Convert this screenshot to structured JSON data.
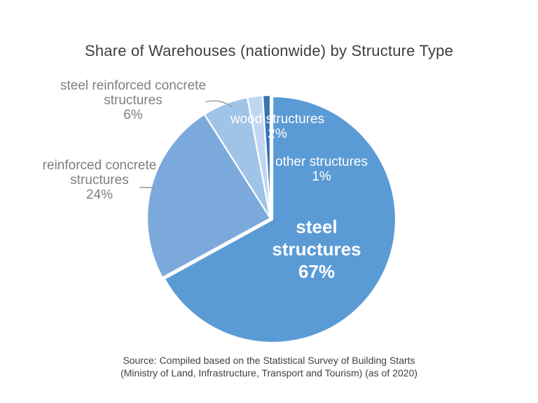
{
  "chart_data": {
    "type": "pie",
    "title": "Share of Warehouses (nationwide) by Structure Type",
    "unit": "%",
    "start_angle_deg": 0,
    "direction": "clockwise",
    "legend": "none",
    "slices": [
      {
        "label": "steel structures",
        "value": 67,
        "pct": "67%",
        "color": "#5B9BD5",
        "text_color": "#FFFFFF",
        "label_placement": "inside",
        "exploded": true
      },
      {
        "label": "reinforced concrete structures",
        "value": 24,
        "pct": "24%",
        "color": "#7CA9DB",
        "text_color": "#7F7F7F",
        "label_placement": "outside",
        "exploded": false
      },
      {
        "label": "steel reinforced concrete structures",
        "value": 6,
        "pct": "6%",
        "color": "#A0C3E8",
        "text_color": "#7F7F7F",
        "label_placement": "outside",
        "exploded": false
      },
      {
        "label": "wood structures",
        "value": 2,
        "pct": "2%",
        "color": "#C1D6F0",
        "text_color": "#FFFFFF",
        "label_placement": "inside",
        "exploded": false
      },
      {
        "label": "other structures",
        "value": 1,
        "pct": "1%",
        "color": "#3673B5",
        "text_color": "#FFFFFF",
        "label_placement": "inside",
        "exploded": false
      }
    ],
    "source": [
      "Source: Compiled based on the Statistical Survey of Building Starts",
      "(Ministry of Land, Infrastructure, Transport and Tourism) (as of 2020)"
    ]
  },
  "colors": {
    "title_text": "#3F3F3F",
    "outside_label_text": "#7F7F7F",
    "leader_line": "#999999",
    "slice_border": "#FFFFFF",
    "background": "#FFFFFF"
  }
}
